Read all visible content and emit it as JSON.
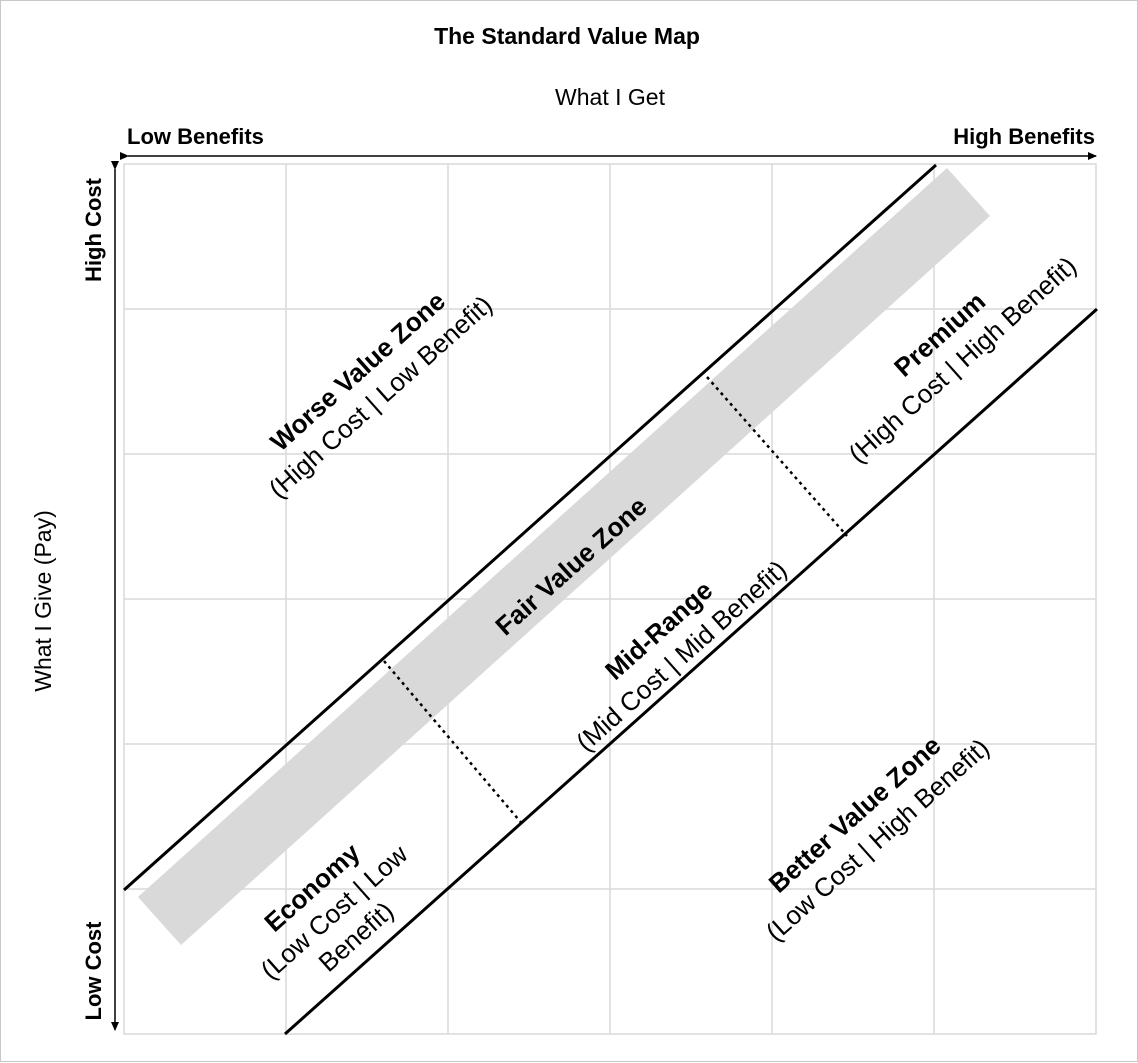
{
  "title": "The Standard Value Map",
  "x_axis": {
    "label": "What I Get",
    "low_label": "Low Benefits",
    "high_label": "High Benefits"
  },
  "y_axis": {
    "label": "What I Give (Pay)",
    "high_label": "High Cost",
    "low_label": "Low Cost"
  },
  "zones": {
    "worse": {
      "title": "Worse Value Zone",
      "subtitle": "(High Cost | Low Benefit)"
    },
    "fair": {
      "title": "Fair Value Zone"
    },
    "premium": {
      "title": "Premium",
      "subtitle": "(High Cost | High Benefit)"
    },
    "mid": {
      "title": "Mid-Range",
      "subtitle": "(Mid Cost | Mid Benefit)"
    },
    "economy": {
      "title": "Economy",
      "subtitle_line1": "(Low Cost | Low",
      "subtitle_line2": "Benefit)"
    },
    "better": {
      "title": "Better Value Zone",
      "subtitle": "(Low Cost | High Benefit)"
    }
  },
  "colors": {
    "grid": "#d9d9d9",
    "fair_band": "#d9d9d9",
    "lines": "#000000",
    "frame": "#c8c8c8"
  }
}
